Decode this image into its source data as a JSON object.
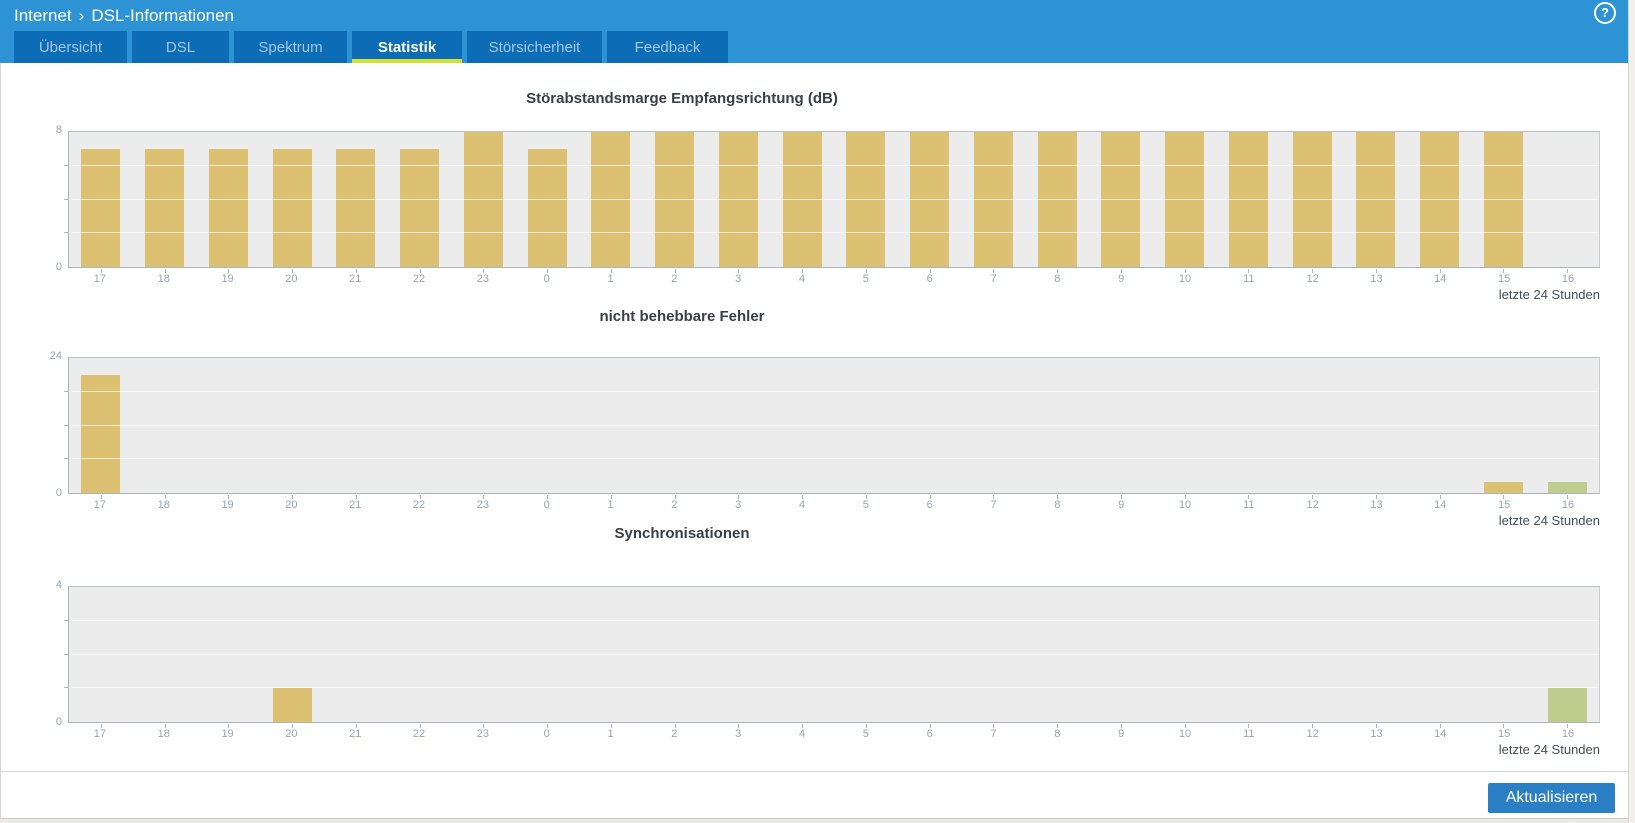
{
  "header": {
    "breadcrumb": {
      "section": "Internet",
      "separator": "›",
      "page": "DSL-Informationen"
    },
    "help_icon_glyph": "?"
  },
  "tabs": [
    {
      "label": "Übersicht",
      "active": false
    },
    {
      "label": "DSL",
      "active": false
    },
    {
      "label": "Spektrum",
      "active": false
    },
    {
      "label": "Statistik",
      "active": true
    },
    {
      "label": "Störsicherheit",
      "active": false
    },
    {
      "label": "Feedback",
      "active": false
    }
  ],
  "chart_data": {
    "type": "bar",
    "categories": [
      "17",
      "18",
      "19",
      "20",
      "21",
      "22",
      "23",
      "0",
      "1",
      "2",
      "3",
      "4",
      "5",
      "6",
      "7",
      "8",
      "9",
      "10",
      "11",
      "12",
      "13",
      "14",
      "15",
      "16"
    ],
    "footer_label": "letzte 24 Stunden",
    "colors": {
      "gold": "#dcc173",
      "green": "#c0cb8e"
    },
    "charts": [
      {
        "title": "Störabstandsmarge Empfangsrichtung (dB)",
        "ylim": [
          0,
          8
        ],
        "ylabels": [
          "8",
          "0"
        ],
        "gridlines": [
          2,
          4,
          6
        ],
        "values": [
          7,
          7,
          7,
          7,
          7,
          7,
          8,
          7,
          8,
          8,
          8,
          8,
          8,
          8,
          8,
          8,
          8,
          8,
          8,
          8,
          8,
          8,
          8,
          0
        ],
        "bar_colors": [
          "gold",
          "gold",
          "gold",
          "gold",
          "gold",
          "gold",
          "gold",
          "gold",
          "gold",
          "gold",
          "gold",
          "gold",
          "gold",
          "gold",
          "gold",
          "gold",
          "gold",
          "gold",
          "gold",
          "gold",
          "gold",
          "gold",
          "gold",
          "gold"
        ]
      },
      {
        "title": "nicht behebbare Fehler",
        "ylim": [
          0,
          24
        ],
        "ylabels": [
          "24",
          "0"
        ],
        "gridlines": [
          6,
          12,
          18
        ],
        "values": [
          21,
          0,
          0,
          0,
          0,
          0,
          0,
          0,
          0,
          0,
          0,
          0,
          0,
          0,
          0,
          0,
          0,
          0,
          0,
          0,
          0,
          0,
          2,
          2
        ],
        "bar_colors": [
          "gold",
          "gold",
          "gold",
          "gold",
          "gold",
          "gold",
          "gold",
          "gold",
          "gold",
          "gold",
          "gold",
          "gold",
          "gold",
          "gold",
          "gold",
          "gold",
          "gold",
          "gold",
          "gold",
          "gold",
          "gold",
          "gold",
          "gold",
          "green"
        ]
      },
      {
        "title": "Synchronisationen",
        "ylim": [
          0,
          4
        ],
        "ylabels": [
          "4",
          "0"
        ],
        "gridlines": [
          1,
          2,
          3
        ],
        "values": [
          0,
          0,
          0,
          1,
          0,
          0,
          0,
          0,
          0,
          0,
          0,
          0,
          0,
          0,
          0,
          0,
          0,
          0,
          0,
          0,
          0,
          0,
          0,
          1
        ],
        "bar_colors": [
          "gold",
          "gold",
          "gold",
          "gold",
          "gold",
          "gold",
          "gold",
          "gold",
          "gold",
          "gold",
          "gold",
          "gold",
          "gold",
          "gold",
          "gold",
          "gold",
          "gold",
          "gold",
          "gold",
          "gold",
          "gold",
          "gold",
          "gold",
          "green"
        ]
      }
    ]
  },
  "footer": {
    "refresh_button_label": "Aktualisieren"
  }
}
